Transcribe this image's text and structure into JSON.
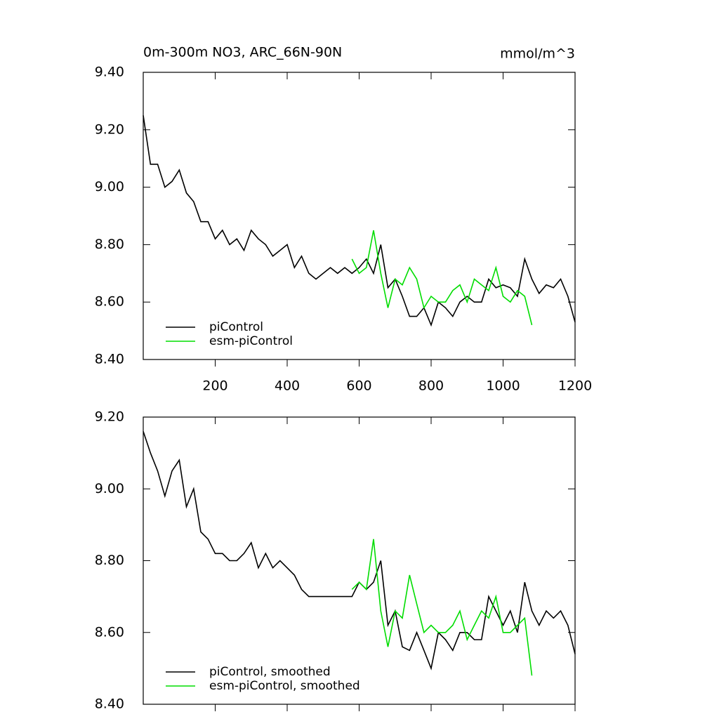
{
  "chart_data": [
    {
      "type": "line",
      "title": "0m-300m NO3, ARC_66N-90N",
      "units": "mmol/m^3",
      "x": [
        0,
        20,
        40,
        60,
        80,
        100,
        120,
        140,
        160,
        180,
        200,
        220,
        240,
        260,
        280,
        300,
        320,
        340,
        360,
        380,
        400,
        420,
        440,
        460,
        480,
        500,
        520,
        540,
        560,
        580,
        600,
        620,
        640,
        660,
        680,
        700,
        720,
        740,
        760,
        780,
        800,
        820,
        840,
        860,
        880,
        900,
        920,
        940,
        960,
        980,
        1000,
        1020,
        1040,
        1060,
        1080,
        1100,
        1120,
        1140,
        1160,
        1180,
        1200
      ],
      "series": [
        {
          "name": "piControl",
          "color": "#000000",
          "values": [
            9.25,
            9.08,
            9.08,
            9.0,
            9.02,
            9.06,
            8.98,
            8.95,
            8.88,
            8.88,
            8.82,
            8.85,
            8.8,
            8.82,
            8.78,
            8.85,
            8.82,
            8.8,
            8.76,
            8.78,
            8.8,
            8.72,
            8.76,
            8.7,
            8.68,
            8.7,
            8.72,
            8.7,
            8.72,
            8.7,
            8.72,
            8.75,
            8.7,
            8.8,
            8.65,
            8.68,
            8.62,
            8.55,
            8.55,
            8.58,
            8.52,
            8.6,
            8.58,
            8.55,
            8.6,
            8.62,
            8.6,
            8.6,
            8.68,
            8.65,
            8.66,
            8.65,
            8.62,
            8.75,
            8.68,
            8.63,
            8.66,
            8.65,
            8.68,
            8.62,
            8.53
          ]
        },
        {
          "name": "esm-piControl",
          "color": "#00dd00",
          "values": [
            null,
            null,
            null,
            null,
            null,
            null,
            null,
            null,
            null,
            null,
            null,
            null,
            null,
            null,
            null,
            null,
            null,
            null,
            null,
            null,
            null,
            null,
            null,
            null,
            null,
            null,
            null,
            null,
            null,
            8.75,
            8.7,
            8.72,
            8.85,
            8.7,
            8.58,
            8.68,
            8.66,
            8.72,
            8.68,
            8.58,
            8.62,
            8.6,
            8.6,
            8.64,
            8.66,
            8.6,
            8.68,
            8.66,
            8.64,
            8.72,
            8.62,
            8.6,
            8.64,
            8.62,
            8.52,
            null,
            null,
            null,
            null,
            null,
            null
          ]
        }
      ],
      "xlim": [
        0,
        1200
      ],
      "xticks": [
        200,
        400,
        600,
        800,
        1000,
        1200
      ],
      "ylim": [
        8.4,
        9.4
      ],
      "yticks": [
        {
          "value": 8.4,
          "label": "8.40"
        },
        {
          "value": 8.6,
          "label": "8.60"
        },
        {
          "value": 8.8,
          "label": "8.80"
        },
        {
          "value": 9.0,
          "label": "9.00"
        },
        {
          "value": 9.2,
          "label": "9.20"
        },
        {
          "value": 9.4,
          "label": "9.40"
        }
      ],
      "legend": "lower-left"
    },
    {
      "type": "line",
      "x": [
        0,
        20,
        40,
        60,
        80,
        100,
        120,
        140,
        160,
        180,
        200,
        220,
        240,
        260,
        280,
        300,
        320,
        340,
        360,
        380,
        400,
        420,
        440,
        460,
        480,
        500,
        520,
        540,
        560,
        580,
        600,
        620,
        640,
        660,
        680,
        700,
        720,
        740,
        760,
        780,
        800,
        820,
        840,
        860,
        880,
        900,
        920,
        940,
        960,
        980,
        1000,
        1020,
        1040,
        1060,
        1080,
        1100,
        1120,
        1140,
        1160,
        1180,
        1200
      ],
      "series": [
        {
          "name": "piControl, smoothed",
          "color": "#000000",
          "values": [
            9.16,
            9.1,
            9.05,
            8.98,
            9.05,
            9.08,
            8.95,
            9.0,
            8.88,
            8.86,
            8.82,
            8.82,
            8.8,
            8.8,
            8.82,
            8.85,
            8.78,
            8.82,
            8.78,
            8.8,
            8.78,
            8.76,
            8.72,
            8.7,
            8.7,
            8.7,
            8.7,
            8.7,
            8.7,
            8.7,
            8.74,
            8.72,
            8.74,
            8.8,
            8.62,
            8.66,
            8.56,
            8.55,
            8.6,
            8.55,
            8.5,
            8.6,
            8.58,
            8.55,
            8.6,
            8.6,
            8.58,
            8.58,
            8.7,
            8.66,
            8.62,
            8.66,
            8.6,
            8.74,
            8.66,
            8.62,
            8.66,
            8.64,
            8.66,
            8.62,
            8.54
          ]
        },
        {
          "name": "esm-piControl, smoothed",
          "color": "#00dd00",
          "values": [
            null,
            null,
            null,
            null,
            null,
            null,
            null,
            null,
            null,
            null,
            null,
            null,
            null,
            null,
            null,
            null,
            null,
            null,
            null,
            null,
            null,
            null,
            null,
            null,
            null,
            null,
            null,
            null,
            null,
            8.72,
            8.74,
            8.72,
            8.86,
            8.66,
            8.56,
            8.66,
            8.64,
            8.76,
            8.68,
            8.6,
            8.62,
            8.6,
            8.6,
            8.62,
            8.66,
            8.58,
            8.62,
            8.66,
            8.64,
            8.7,
            8.6,
            8.6,
            8.62,
            8.64,
            8.48,
            null,
            null,
            null,
            null,
            null,
            null
          ]
        }
      ],
      "xlim": [
        0,
        1200
      ],
      "xticks": [
        200,
        400,
        600,
        800,
        1000,
        1200
      ],
      "ylim": [
        8.4,
        9.2
      ],
      "yticks": [
        {
          "value": 8.4,
          "label": "8.40"
        },
        {
          "value": 8.6,
          "label": "8.60"
        },
        {
          "value": 8.8,
          "label": "8.80"
        },
        {
          "value": 9.0,
          "label": "9.00"
        },
        {
          "value": 9.2,
          "label": "9.20"
        }
      ],
      "legend": "lower-left"
    }
  ]
}
